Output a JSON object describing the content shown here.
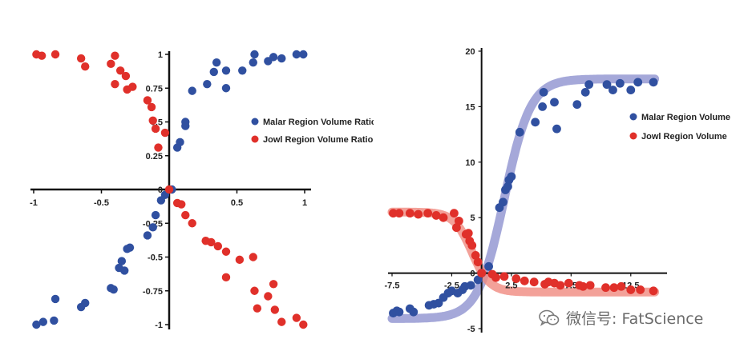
{
  "chart_data": [
    {
      "type": "scatter",
      "xlim": [
        -1,
        1
      ],
      "ylim": [
        -1,
        1
      ],
      "x_ticks": [
        -1,
        -0.5,
        0,
        0.5,
        1
      ],
      "y_ticks": [
        1,
        0.75,
        0.5,
        0.25,
        0,
        -0.25,
        -0.5,
        -0.75,
        -1
      ],
      "tick_labels_x": [
        "-1",
        "-0.5",
        "0",
        "0.5",
        "1"
      ],
      "tick_labels_y": [
        "1",
        "0.75",
        "0.5",
        "0.25",
        "0",
        "-0.25",
        "-0.5",
        "-0.75",
        "-1"
      ],
      "legend_position": "right",
      "series": [
        {
          "name": "Malar Region Volume Ratio",
          "color": "#3050a0",
          "points": [
            [
              -0.98,
              -1.0
            ],
            [
              -0.93,
              -0.98
            ],
            [
              -0.85,
              -0.97
            ],
            [
              -0.84,
              -0.81
            ],
            [
              -0.65,
              -0.87
            ],
            [
              -0.62,
              -0.84
            ],
            [
              -0.43,
              -0.73
            ],
            [
              -0.41,
              -0.74
            ],
            [
              -0.37,
              -0.58
            ],
            [
              -0.35,
              -0.53
            ],
            [
              -0.33,
              -0.6
            ],
            [
              -0.31,
              -0.44
            ],
            [
              -0.29,
              -0.43
            ],
            [
              -0.16,
              -0.34
            ],
            [
              -0.12,
              -0.28
            ],
            [
              -0.1,
              -0.19
            ],
            [
              -0.06,
              -0.08
            ],
            [
              -0.03,
              -0.04
            ],
            [
              0.02,
              0.0
            ],
            [
              0.06,
              0.31
            ],
            [
              0.08,
              0.35
            ],
            [
              0.12,
              0.47
            ],
            [
              0.12,
              0.5
            ],
            [
              0.17,
              0.73
            ],
            [
              0.28,
              0.78
            ],
            [
              0.33,
              0.87
            ],
            [
              0.35,
              0.94
            ],
            [
              0.42,
              0.88
            ],
            [
              0.42,
              0.75
            ],
            [
              0.54,
              0.88
            ],
            [
              0.62,
              0.94
            ],
            [
              0.63,
              1.0
            ],
            [
              0.73,
              0.95
            ],
            [
              0.77,
              0.98
            ],
            [
              0.83,
              0.97
            ],
            [
              0.94,
              1.0
            ],
            [
              0.99,
              1.0
            ]
          ]
        },
        {
          "name": "Jowl Region Volume Ratio",
          "color": "#e0302a",
          "points": [
            [
              -0.98,
              1.0
            ],
            [
              -0.94,
              0.99
            ],
            [
              -0.84,
              1.0
            ],
            [
              -0.65,
              0.97
            ],
            [
              -0.62,
              0.91
            ],
            [
              -0.43,
              0.93
            ],
            [
              -0.4,
              0.99
            ],
            [
              -0.4,
              0.78
            ],
            [
              -0.36,
              0.88
            ],
            [
              -0.32,
              0.84
            ],
            [
              -0.31,
              0.74
            ],
            [
              -0.27,
              0.76
            ],
            [
              -0.16,
              0.66
            ],
            [
              -0.13,
              0.61
            ],
            [
              -0.12,
              0.51
            ],
            [
              -0.1,
              0.45
            ],
            [
              -0.08,
              0.31
            ],
            [
              -0.03,
              0.42
            ],
            [
              0.0,
              0.0
            ],
            [
              0.06,
              -0.1
            ],
            [
              0.09,
              -0.11
            ],
            [
              0.12,
              -0.19
            ],
            [
              0.17,
              -0.25
            ],
            [
              0.27,
              -0.38
            ],
            [
              0.31,
              -0.39
            ],
            [
              0.36,
              -0.42
            ],
            [
              0.42,
              -0.46
            ],
            [
              0.42,
              -0.65
            ],
            [
              0.52,
              -0.52
            ],
            [
              0.62,
              -0.5
            ],
            [
              0.63,
              -0.75
            ],
            [
              0.65,
              -0.88
            ],
            [
              0.73,
              -0.79
            ],
            [
              0.77,
              -0.7
            ],
            [
              0.78,
              -0.89
            ],
            [
              0.83,
              -0.98
            ],
            [
              0.94,
              -0.95
            ],
            [
              0.99,
              -1.0
            ]
          ]
        }
      ]
    },
    {
      "type": "scatter",
      "xlim": [
        -7.5,
        15
      ],
      "ylim": [
        -5,
        20
      ],
      "x_ticks": [
        -7.5,
        -2.5,
        2.5,
        7.5,
        12.5
      ],
      "y_ticks": [
        20,
        15,
        10,
        5,
        0,
        -5
      ],
      "tick_labels_x": [
        "-7.5",
        "-2.5",
        "2.5",
        "7.5",
        "12.5"
      ],
      "tick_labels_y": [
        "20",
        "15",
        "10",
        "5",
        "0",
        "-5"
      ],
      "legend_position": "right",
      "series": [
        {
          "name": "Malar Region Volume",
          "color": "#3050a0",
          "trend_color": "#8e92d0",
          "points": [
            [
              -7.4,
              -3.6
            ],
            [
              -7.1,
              -3.4
            ],
            [
              -6.9,
              -3.5
            ],
            [
              -6.0,
              -3.2
            ],
            [
              -5.7,
              -3.5
            ],
            [
              -4.4,
              -2.9
            ],
            [
              -4.0,
              -2.8
            ],
            [
              -3.6,
              -2.7
            ],
            [
              -3.2,
              -2.2
            ],
            [
              -2.8,
              -1.8
            ],
            [
              -2.5,
              -1.6
            ],
            [
              -2.0,
              -1.8
            ],
            [
              -1.6,
              -1.5
            ],
            [
              -1.4,
              -1.2
            ],
            [
              -0.9,
              -1.1
            ],
            [
              -0.3,
              -0.6
            ],
            [
              0.0,
              0.0
            ],
            [
              0.6,
              0.6
            ],
            [
              1.5,
              5.9
            ],
            [
              1.8,
              6.4
            ],
            [
              2.0,
              7.5
            ],
            [
              2.2,
              7.8
            ],
            [
              2.3,
              8.4
            ],
            [
              2.5,
              8.7
            ],
            [
              3.2,
              12.7
            ],
            [
              4.5,
              13.6
            ],
            [
              5.1,
              15.0
            ],
            [
              5.2,
              16.3
            ],
            [
              6.1,
              15.4
            ],
            [
              6.3,
              13.0
            ],
            [
              8.0,
              15.2
            ],
            [
              8.7,
              16.3
            ],
            [
              9.0,
              17.0
            ],
            [
              10.5,
              17.0
            ],
            [
              11.0,
              16.5
            ],
            [
              11.6,
              17.1
            ],
            [
              12.5,
              16.5
            ],
            [
              13.1,
              17.2
            ],
            [
              14.4,
              17.2
            ]
          ]
        },
        {
          "name": "Jowl Region Volume",
          "color": "#e0302a",
          "trend_color": "#f08a80",
          "points": [
            [
              -7.4,
              5.4
            ],
            [
              -6.9,
              5.4
            ],
            [
              -6.0,
              5.4
            ],
            [
              -5.3,
              5.3
            ],
            [
              -4.5,
              5.4
            ],
            [
              -3.8,
              5.2
            ],
            [
              -3.2,
              5.0
            ],
            [
              -2.3,
              5.4
            ],
            [
              -2.1,
              4.1
            ],
            [
              -1.9,
              4.7
            ],
            [
              -1.3,
              3.5
            ],
            [
              -1.1,
              3.6
            ],
            [
              -1.0,
              2.9
            ],
            [
              -0.8,
              2.5
            ],
            [
              -0.5,
              1.6
            ],
            [
              -0.3,
              1.0
            ],
            [
              0.0,
              0.0
            ],
            [
              0.9,
              -0.1
            ],
            [
              1.2,
              -0.4
            ],
            [
              1.9,
              -0.3
            ],
            [
              2.9,
              -0.5
            ],
            [
              3.6,
              -0.7
            ],
            [
              4.4,
              -0.8
            ],
            [
              5.3,
              -1.0
            ],
            [
              5.6,
              -0.8
            ],
            [
              6.1,
              -0.9
            ],
            [
              6.6,
              -1.1
            ],
            [
              7.3,
              -0.9
            ],
            [
              8.2,
              -1.1
            ],
            [
              8.5,
              -1.2
            ],
            [
              9.1,
              -1.1
            ],
            [
              10.4,
              -1.3
            ],
            [
              11.1,
              -1.3
            ],
            [
              11.7,
              -1.2
            ],
            [
              12.5,
              -1.5
            ],
            [
              13.3,
              -1.5
            ],
            [
              14.4,
              -1.6
            ]
          ]
        }
      ]
    }
  ],
  "watermark": {
    "icon": "wechat-icon",
    "text": "微信号: FatScience"
  }
}
